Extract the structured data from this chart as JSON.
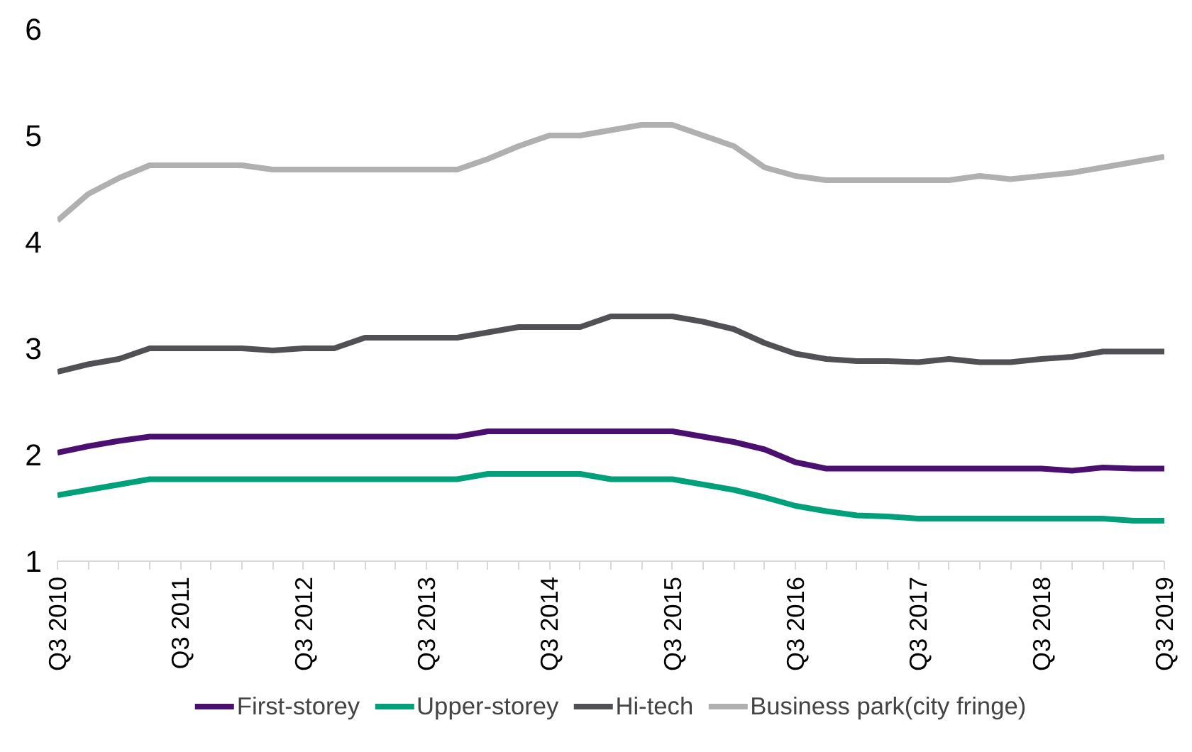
{
  "chart_data": {
    "type": "line",
    "categories": [
      "Q3 2010",
      null,
      null,
      null,
      "Q3 2011",
      null,
      null,
      null,
      "Q3 2012",
      null,
      null,
      null,
      "Q3 2013",
      null,
      null,
      null,
      "Q3 2014",
      null,
      null,
      null,
      "Q3 2015",
      null,
      null,
      null,
      "Q3 2016",
      null,
      null,
      null,
      "Q3 2017",
      null,
      null,
      null,
      "Q3 2018",
      null,
      null,
      null,
      "Q3 2019"
    ],
    "ylim": [
      1,
      6
    ],
    "yticks": [
      1,
      2,
      3,
      4,
      5,
      6
    ],
    "grid": false,
    "legend": "bottom",
    "marker": "none",
    "line_style": "solid",
    "series": [
      {
        "name": "First-storey",
        "color": "#4b0f6f",
        "values": [
          2.02,
          2.08,
          2.13,
          2.17,
          2.17,
          2.17,
          2.17,
          2.17,
          2.17,
          2.17,
          2.17,
          2.17,
          2.17,
          2.17,
          2.22,
          2.22,
          2.22,
          2.22,
          2.22,
          2.22,
          2.22,
          2.17,
          2.12,
          2.05,
          1.93,
          1.87,
          1.87,
          1.87,
          1.87,
          1.87,
          1.87,
          1.87,
          1.87,
          1.85,
          1.88,
          1.87,
          1.87
        ]
      },
      {
        "name": "Upper-storey",
        "color": "#00a07a",
        "values": [
          1.62,
          1.67,
          1.72,
          1.77,
          1.77,
          1.77,
          1.77,
          1.77,
          1.77,
          1.77,
          1.77,
          1.77,
          1.77,
          1.77,
          1.82,
          1.82,
          1.82,
          1.82,
          1.77,
          1.77,
          1.77,
          1.72,
          1.67,
          1.6,
          1.52,
          1.47,
          1.43,
          1.42,
          1.4,
          1.4,
          1.4,
          1.4,
          1.4,
          1.4,
          1.4,
          1.38,
          1.38
        ]
      },
      {
        "name": "Hi-tech",
        "color": "#505055",
        "values": [
          2.78,
          2.85,
          2.9,
          3.0,
          3.0,
          3.0,
          3.0,
          2.98,
          3.0,
          3.0,
          3.1,
          3.1,
          3.1,
          3.1,
          3.15,
          3.2,
          3.2,
          3.2,
          3.3,
          3.3,
          3.3,
          3.25,
          3.18,
          3.05,
          2.95,
          2.9,
          2.88,
          2.88,
          2.87,
          2.9,
          2.87,
          2.87,
          2.9,
          2.92,
          2.97,
          2.97,
          2.97
        ]
      },
      {
        "name": "Business park(city fringe)",
        "color": "#b0b0b0",
        "values": [
          4.2,
          4.45,
          4.6,
          4.72,
          4.72,
          4.72,
          4.72,
          4.68,
          4.68,
          4.68,
          4.68,
          4.68,
          4.68,
          4.68,
          4.78,
          4.9,
          5.0,
          5.0,
          5.05,
          5.1,
          5.1,
          5.0,
          4.9,
          4.7,
          4.62,
          4.58,
          4.58,
          4.58,
          4.58,
          4.58,
          4.62,
          4.59,
          4.62,
          4.65,
          4.7,
          4.75,
          4.8
        ]
      }
    ]
  }
}
